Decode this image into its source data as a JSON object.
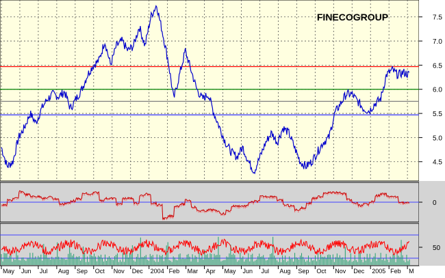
{
  "chart_data": {
    "type": "line",
    "title": "FINECOGROUP",
    "price_panel": {
      "y_ticks": [
        4.5,
        5.0,
        5.5,
        6.0,
        6.5,
        7.0,
        7.5
      ],
      "ylim": [
        4.1,
        7.85
      ],
      "horizontal_lines": [
        {
          "value": 6.47,
          "color": "#ff0000"
        },
        {
          "value": 6.0,
          "color": "#008000"
        },
        {
          "value": 5.75,
          "color": "#808080"
        },
        {
          "value": 5.47,
          "color": "#4040ff"
        }
      ],
      "price_color": "#0000cc",
      "series": [
        {
          "values": [
            4.8,
            4.4,
            4.5,
            5.0,
            5.2,
            5.5,
            5.3,
            5.6,
            5.8,
            5.9,
            5.85,
            5.95,
            5.6,
            5.8,
            6.0,
            6.3,
            6.5,
            6.6,
            7.0,
            6.5,
            6.9,
            7.0,
            6.8,
            6.9,
            7.3,
            6.9,
            7.5,
            7.75,
            7.2,
            6.6,
            5.8,
            6.3,
            6.8,
            6.4,
            6.0,
            5.8,
            5.9,
            5.5,
            5.2,
            4.9,
            4.7,
            4.6,
            4.8,
            4.5,
            4.3,
            4.6,
            4.9,
            5.1,
            4.9,
            5.2,
            5.1,
            4.8,
            4.5,
            4.4,
            4.5,
            4.7,
            4.9,
            5.0,
            5.5,
            5.7,
            5.9,
            5.9,
            5.75,
            5.6,
            5.55,
            5.7,
            5.8,
            6.3,
            6.4,
            6.3,
            6.35,
            6.3
          ]
        }
      ]
    },
    "oscillator_panel": {
      "y_ticks": [
        0
      ],
      "line_color": "#cc0000"
    },
    "rsi_panel": {
      "y_ticks": [
        50
      ],
      "line_color": "#ff0000",
      "volume_color": "#20a070"
    },
    "x_tick_labels": [
      "May",
      "Jun",
      "Jul",
      "Aug",
      "Sep",
      "Oct",
      "Nov",
      "Dec",
      "2004",
      "Feb",
      "Mar",
      "Apr",
      "May",
      "Jun",
      "Jul",
      "Aug",
      "Sep",
      "Oct",
      "Nov",
      "Dec",
      "2005",
      "Feb",
      "M"
    ],
    "colors": {
      "price_background": "#ffffe0",
      "indicator_background": "#d4d4d4",
      "blue_line": "#4040ff"
    }
  }
}
